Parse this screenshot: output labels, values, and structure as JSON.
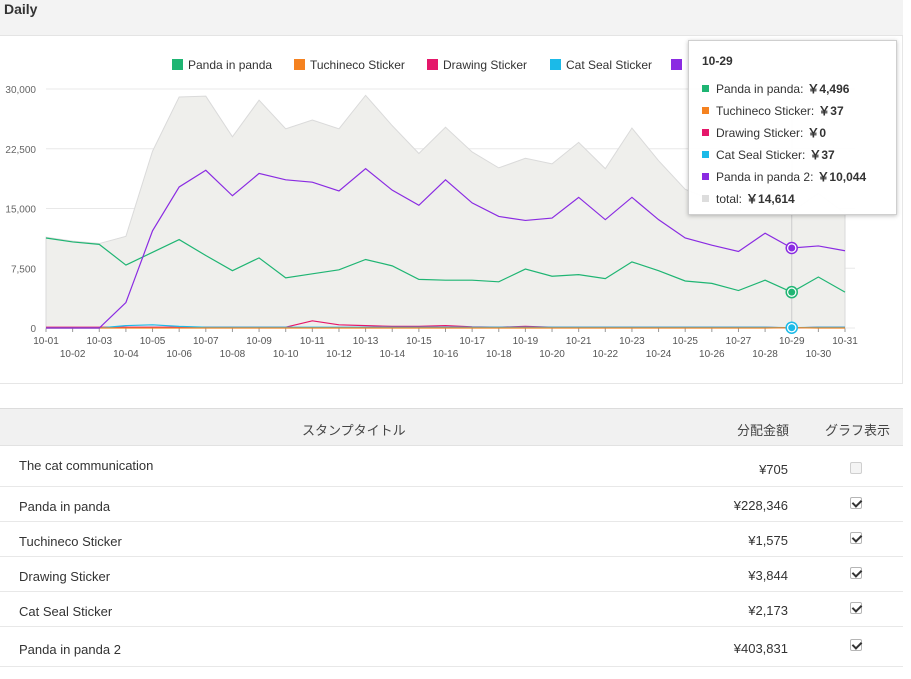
{
  "header": {
    "title": "Daily"
  },
  "chart_data": {
    "type": "area",
    "ylim": [
      0,
      30000
    ],
    "y_ticks": [
      "0",
      "7,500",
      "15,000",
      "22,500",
      "30,000"
    ],
    "y_tick_values": [
      0,
      7500,
      15000,
      22500,
      30000
    ],
    "x": [
      "10-01",
      "10-02",
      "10-03",
      "10-04",
      "10-05",
      "10-06",
      "10-07",
      "10-08",
      "10-09",
      "10-10",
      "10-11",
      "10-12",
      "10-13",
      "10-14",
      "10-15",
      "10-16",
      "10-17",
      "10-18",
      "10-19",
      "10-20",
      "10-21",
      "10-22",
      "10-23",
      "10-24",
      "10-25",
      "10-26",
      "10-27",
      "10-28",
      "10-29",
      "10-30",
      "10-31"
    ],
    "grid": true,
    "legend": "top",
    "series": [
      {
        "name": "Panda in panda",
        "color": "#1fb573",
        "values": [
          11300,
          10800,
          10500,
          7900,
          9500,
          11100,
          9100,
          7200,
          8800,
          6300,
          6800,
          7300,
          8600,
          7800,
          6100,
          6000,
          6000,
          5800,
          7400,
          6500,
          6700,
          6200,
          8300,
          7200,
          5900,
          5600,
          4700,
          6000,
          4496,
          6400,
          4500
        ]
      },
      {
        "name": "Tuchineco Sticker",
        "color": "#f58220",
        "values": [
          0,
          0,
          0,
          0,
          0,
          0,
          0,
          0,
          0,
          0,
          0,
          0,
          0,
          0,
          0,
          0,
          0,
          0,
          0,
          0,
          0,
          0,
          0,
          0,
          0,
          0,
          0,
          0,
          37,
          0,
          0
        ]
      },
      {
        "name": "Drawing Sticker",
        "color": "#e5176a",
        "values": [
          100,
          100,
          100,
          100,
          100,
          100,
          100,
          100,
          100,
          100,
          900,
          400,
          300,
          200,
          200,
          300,
          150,
          100,
          200,
          100,
          100,
          100,
          100,
          100,
          100,
          100,
          100,
          100,
          0,
          100,
          100
        ]
      },
      {
        "name": "Cat Seal Sticker",
        "color": "#1bbae8",
        "values": [
          0,
          0,
          0,
          300,
          400,
          200,
          100,
          100,
          100,
          100,
          100,
          100,
          100,
          100,
          100,
          100,
          100,
          100,
          100,
          100,
          100,
          100,
          100,
          100,
          100,
          100,
          100,
          100,
          37,
          100,
          100
        ]
      },
      {
        "name": "Panda in panda 2",
        "color": "#8a2be2",
        "values": [
          0,
          0,
          0,
          3200,
          12200,
          17700,
          19800,
          16600,
          19400,
          18600,
          18300,
          17200,
          20000,
          17300,
          15400,
          18600,
          15700,
          14000,
          13500,
          13800,
          16400,
          13600,
          16400,
          13600,
          11300,
          10400,
          9600,
          11900,
          10044,
          10300,
          9700
        ]
      },
      {
        "name": "total",
        "color": "#dddddd",
        "values": [
          11400,
          10900,
          10600,
          11500,
          22200,
          29000,
          29100,
          24000,
          28600,
          25000,
          26100,
          25000,
          29200,
          25400,
          21900,
          25200,
          22100,
          20100,
          21300,
          20600,
          23300,
          20000,
          25100,
          21000,
          17400,
          16100,
          14500,
          18000,
          14614,
          16900,
          14400
        ]
      }
    ]
  },
  "legend_items": [
    {
      "label": "Panda in panda",
      "color": "#1fb573"
    },
    {
      "label": "Tuchineco Sticker",
      "color": "#f58220"
    },
    {
      "label": "Drawing Sticker",
      "color": "#e5176a"
    },
    {
      "label": "Cat Seal Sticker",
      "color": "#1bbae8"
    },
    {
      "label": "",
      "color": "#8a2be2"
    }
  ],
  "tooltip": {
    "date": "10-29",
    "rows": [
      {
        "label": "Panda in panda:",
        "value": "￥4,496",
        "color": "#1fb573"
      },
      {
        "label": "Tuchineco Sticker:",
        "value": "￥37",
        "color": "#f58220"
      },
      {
        "label": "Drawing Sticker:",
        "value": "￥0",
        "color": "#e5176a"
      },
      {
        "label": "Cat Seal Sticker:",
        "value": "￥37",
        "color": "#1bbae8"
      },
      {
        "label": "Panda in panda 2:",
        "value": "￥10,044",
        "color": "#8a2be2"
      },
      {
        "label": "total:",
        "value": "￥14,614",
        "color": "#dddddd"
      }
    ]
  },
  "table": {
    "headers": {
      "title": "スタンプタイトル",
      "amount": "分配金額",
      "graph": "グラフ表示"
    },
    "rows": [
      {
        "title": "The cat communication",
        "amount": "¥705",
        "checked": false
      },
      {
        "title": "Panda in panda",
        "amount": "¥228,346",
        "checked": true
      },
      {
        "title": "Tuchineco Sticker",
        "amount": "¥1,575",
        "checked": true
      },
      {
        "title": "Drawing Sticker",
        "amount": "¥3,844",
        "checked": true
      },
      {
        "title": "Cat Seal Sticker",
        "amount": "¥2,173",
        "checked": true
      },
      {
        "title": "Panda in panda 2",
        "amount": "¥403,831",
        "checked": true
      }
    ]
  }
}
